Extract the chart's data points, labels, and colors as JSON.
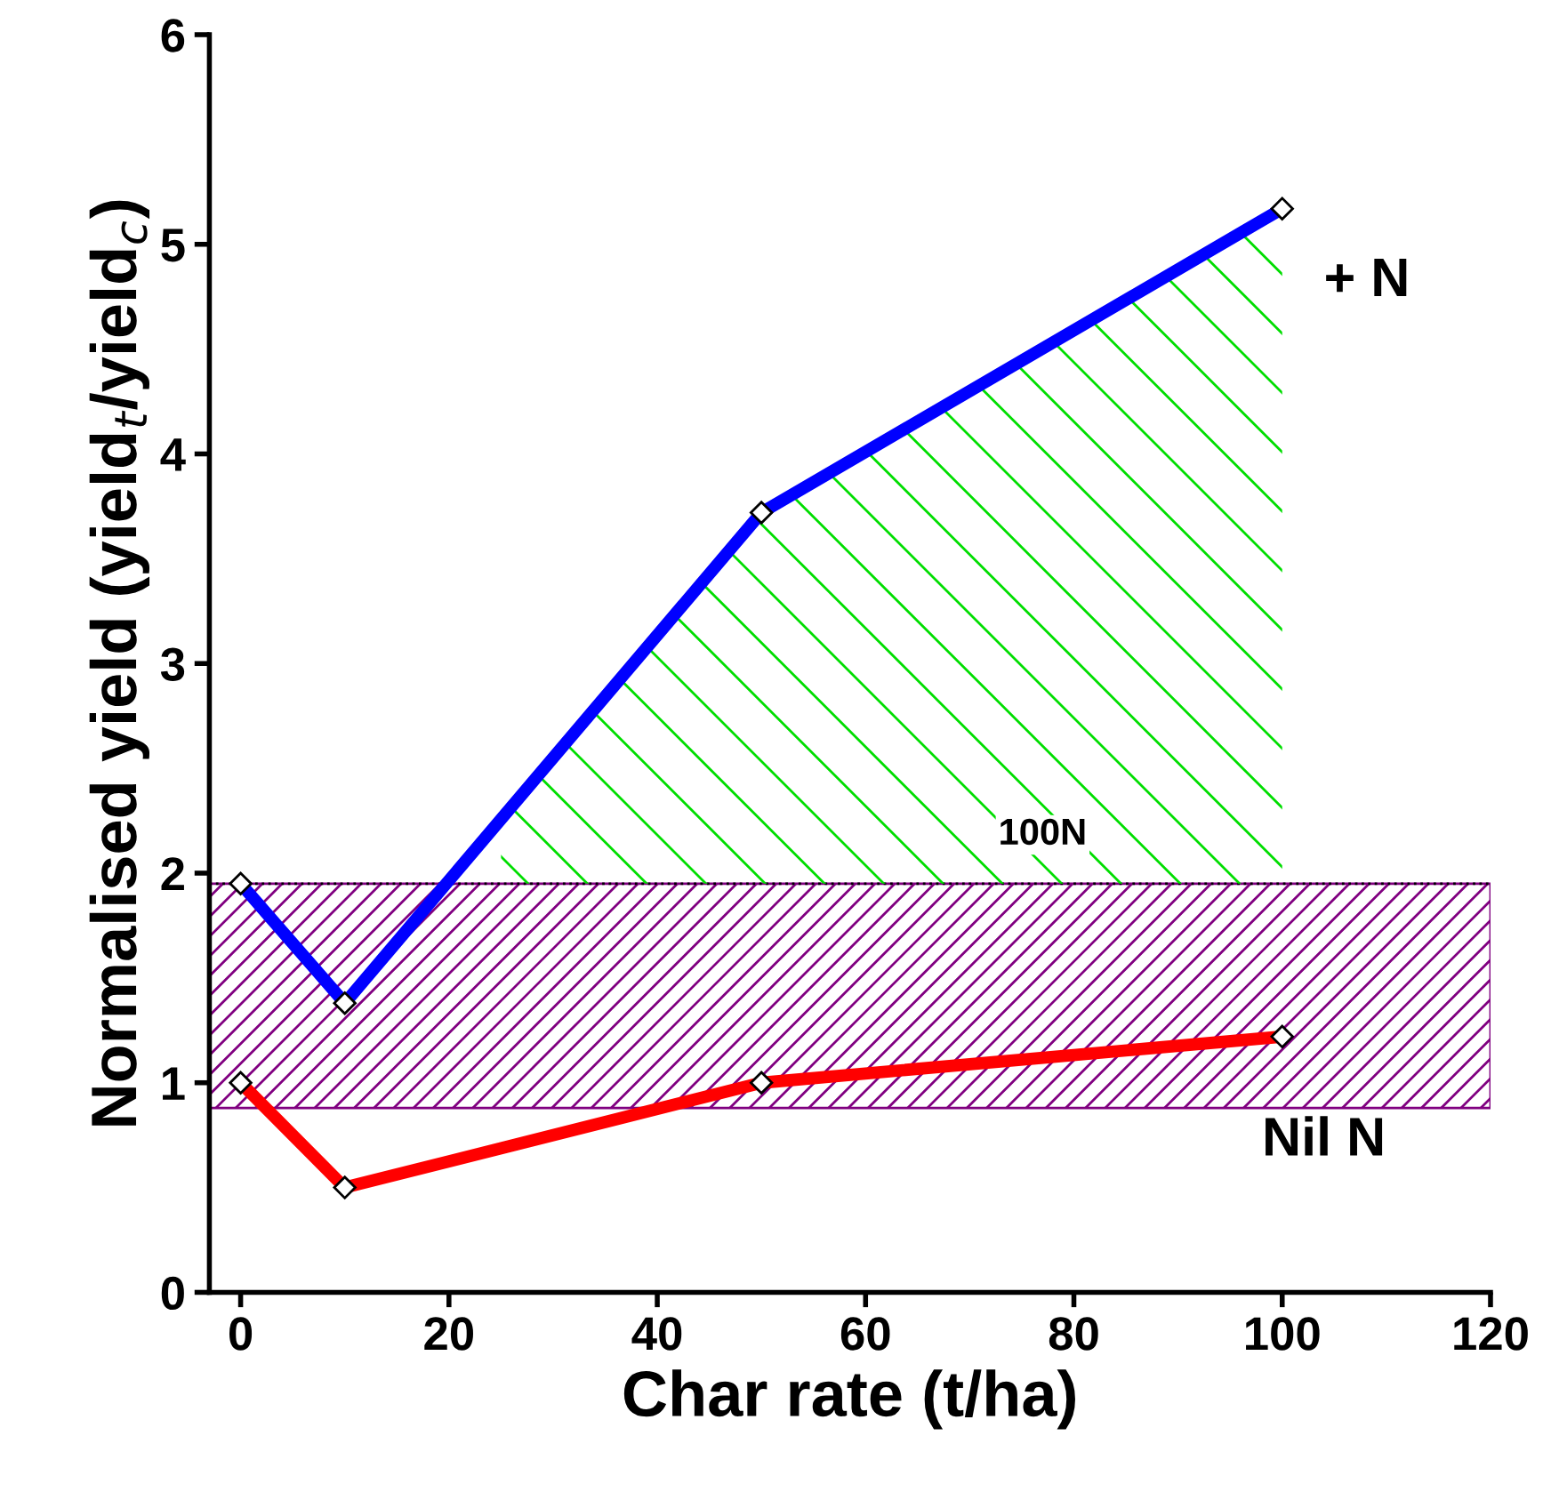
{
  "chart_data": {
    "type": "line",
    "xlabel": "Char rate (t/ha)",
    "ylabel": "Normalised yield (yield$_{t}$/yield$_{c}$)",
    "xlim": [
      -3,
      120
    ],
    "xticks": [
      0,
      20,
      40,
      60,
      80,
      100,
      120
    ],
    "ylim": [
      0,
      6
    ],
    "yticks": [
      0,
      1,
      2,
      3,
      4,
      5,
      6
    ],
    "marker": "diamond",
    "grid": false,
    "series": [
      {
        "name": "+ N",
        "color": "#0000ff",
        "x": [
          0,
          10,
          50,
          100
        ],
        "values": [
          1.95,
          1.38,
          3.72,
          5.17
        ]
      },
      {
        "name": "Nil N",
        "color": "#ff0000",
        "x": [
          0,
          10,
          50,
          100
        ],
        "values": [
          1.0,
          0.5,
          1.0,
          1.22
        ]
      }
    ],
    "ref_lines": [
      {
        "axis": "y",
        "value": 1.95,
        "color": "#000000",
        "line_style": "dotted"
      }
    ],
    "bands": [
      {
        "axis": "y",
        "from": 0.88,
        "to": 1.95,
        "label": "100N",
        "color": "#800080"
      }
    ]
  }
}
